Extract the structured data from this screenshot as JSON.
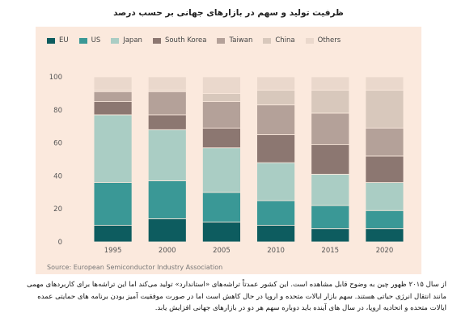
{
  "title": "ظرفیت تولید و سهم در بازارهای جهانی بر حسب درصد",
  "source": "Source: European Semiconductor Industry Association",
  "caption": "از سال ۲۰۱۵ ظهور چین به وضوح قابل مشاهده است. این کشور عمدتاً تراشه‌های «استاندارد» تولید می‌کند اما این تراشه‌ها برای کاربردهای مهمی مانند انتقال انرژی حیاتی هستند. سهم بازار ایالات متحده و اروپا در حال کاهش است اما در صورت موفقیت آمیز بودن برنامه های حمایتی عمده ایالات متحده و اتحادیه اروپا، در سال های آینده باید دوباره سهم هر دو در بازارهای جهانی افزایش یابد.",
  "chart_data": {
    "type": "bar",
    "stacked": true,
    "categories": [
      "1995",
      "2000",
      "2005",
      "2010",
      "2015",
      "2020"
    ],
    "yticks": [
      0,
      20,
      40,
      60,
      80,
      100
    ],
    "ylim": [
      0,
      100
    ],
    "grid": false,
    "legend_position": "top",
    "series": [
      {
        "name": "EU",
        "color": "#0d5c5f",
        "values": [
          10,
          14,
          12,
          10,
          8,
          8
        ]
      },
      {
        "name": "US",
        "color": "#3a9896",
        "values": [
          26,
          23,
          18,
          15,
          14,
          11
        ]
      },
      {
        "name": "Japan",
        "color": "#aacdc4",
        "values": [
          41,
          31,
          27,
          23,
          19,
          17
        ]
      },
      {
        "name": "South Korea",
        "color": "#8c7771",
        "values": [
          8,
          9,
          12,
          17,
          18,
          16
        ]
      },
      {
        "name": "Taiwan",
        "color": "#b4a199",
        "values": [
          6,
          14,
          16,
          18,
          19,
          17
        ]
      },
      {
        "name": "China",
        "color": "#d8c8bc",
        "values": [
          1,
          1,
          5,
          9,
          14,
          23
        ]
      },
      {
        "name": "Others",
        "color": "#ead8cc",
        "values": [
          8,
          8,
          10,
          8,
          8,
          8
        ]
      }
    ]
  }
}
